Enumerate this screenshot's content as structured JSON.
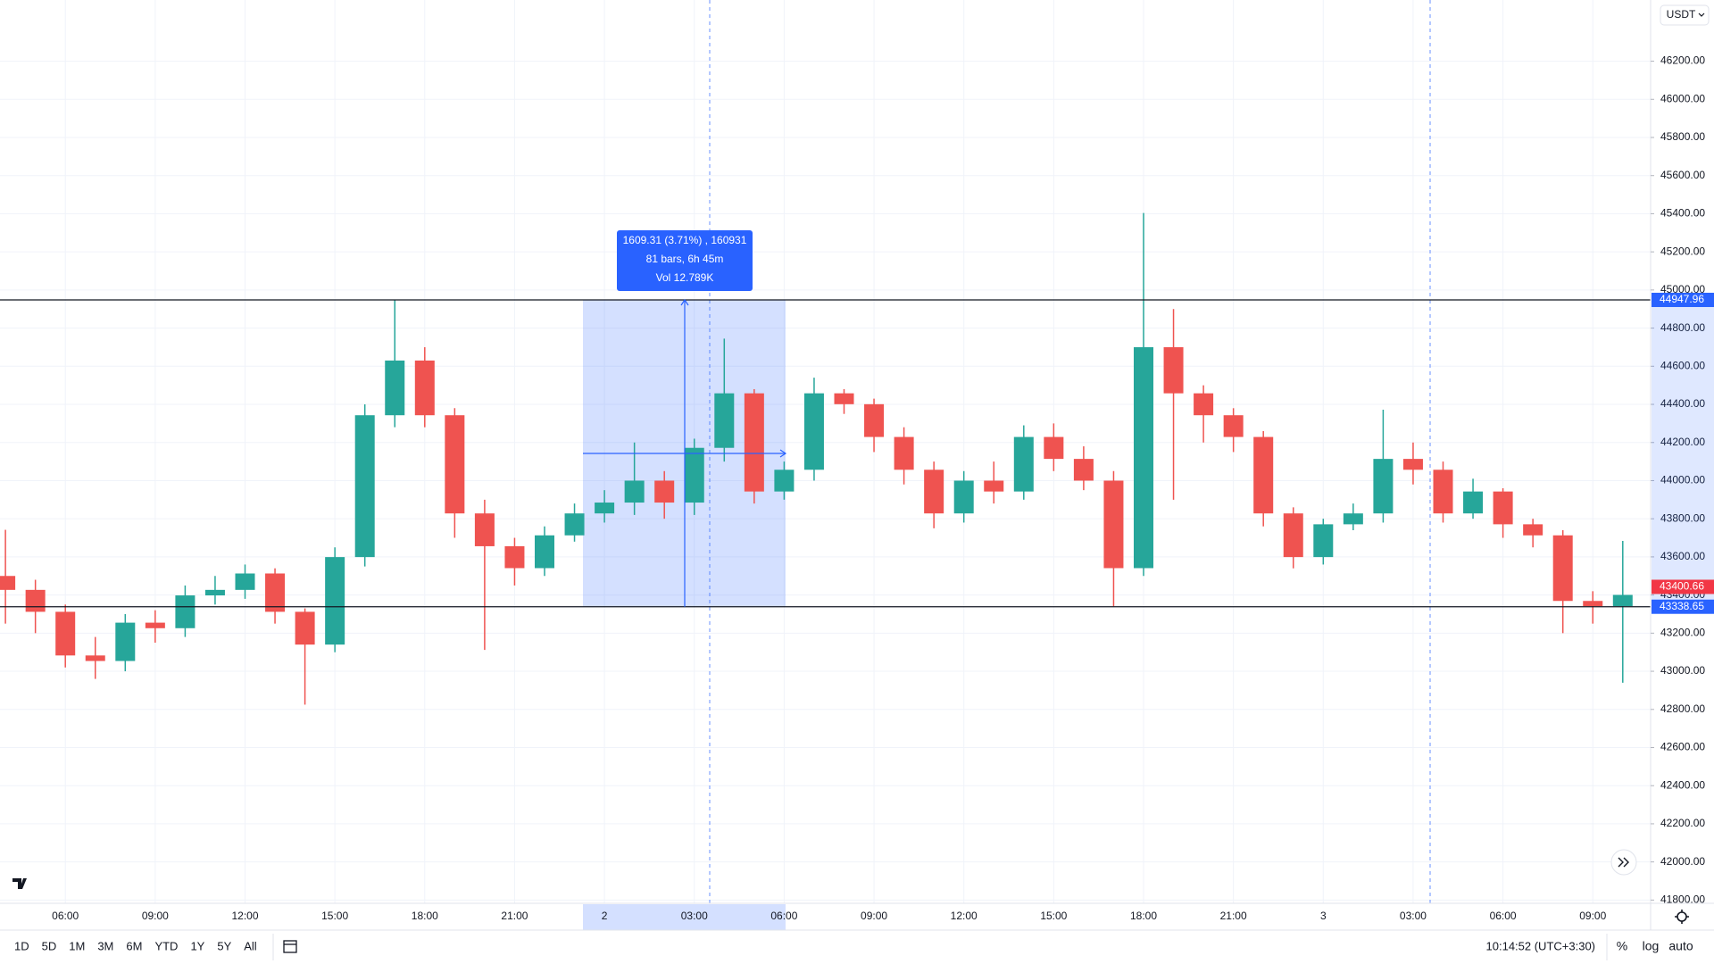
{
  "chart_data": {
    "type": "candlestick",
    "currency": "USDT",
    "categories": [
      null,
      null,
      "06:00",
      null,
      null,
      "09:00",
      null,
      null,
      "12:00",
      null,
      null,
      "15:00",
      null,
      null,
      "18:00",
      null,
      null,
      "21:00",
      null,
      null,
      "2",
      null,
      null,
      "03:00",
      null,
      null,
      "06:00",
      null,
      null,
      "09:00",
      null,
      null,
      "12:00",
      null,
      null,
      "15:00",
      null,
      null,
      "18:00",
      null,
      null,
      "21:00",
      null,
      null,
      "3",
      null,
      null,
      "03:00",
      null,
      null,
      "06:00",
      null,
      null,
      "09:00",
      null
    ],
    "open": [
      43500,
      43427,
      43312,
      43083,
      43054,
      43255,
      43226,
      43398,
      43427,
      43513,
      43312,
      43140,
      43599,
      44343,
      44630,
      44343,
      43828,
      43656,
      43541,
      43713,
      43828,
      43885,
      44000,
      43885,
      44172,
      44458,
      43943,
      44057,
      44458,
      44401,
      44229,
      44057,
      43828,
      44000,
      43943,
      44229,
      44114,
      44000,
      43541,
      44700,
      44458,
      44343,
      44229,
      43828,
      43599,
      43771,
      43828,
      44114,
      44057,
      43828,
      43943,
      43771,
      43713,
      43369,
      43341
    ],
    "high": [
      43742,
      43480,
      43350,
      43180,
      43300,
      43320,
      43450,
      43500,
      43560,
      43540,
      43330,
      43650,
      44400,
      44947,
      44700,
      44380,
      43900,
      43700,
      43760,
      43880,
      43950,
      44200,
      44050,
      44220,
      44745,
      44480,
      44100,
      44540,
      44480,
      44430,
      44280,
      44100,
      44050,
      44100,
      44290,
      44300,
      44180,
      44050,
      45404,
      44900,
      44500,
      44380,
      44260,
      43860,
      43800,
      43880,
      44372,
      44200,
      44100,
      44010,
      43960,
      43800,
      43740,
      43420,
      43684
    ],
    "low": [
      43250,
      43200,
      43020,
      42960,
      43000,
      43150,
      43180,
      43350,
      43380,
      43250,
      42825,
      43100,
      43550,
      44280,
      44280,
      43700,
      43112,
      43450,
      43500,
      43680,
      43780,
      43820,
      43800,
      43820,
      44100,
      43880,
      43900,
      44000,
      44350,
      44150,
      43980,
      43750,
      43780,
      43880,
      43900,
      44050,
      43950,
      43341,
      43500,
      43900,
      44200,
      44150,
      43760,
      43540,
      43560,
      43740,
      43780,
      43980,
      43780,
      43800,
      43700,
      43650,
      43200,
      43250,
      42940
    ],
    "close": [
      43427,
      43312,
      43083,
      43054,
      43255,
      43226,
      43398,
      43427,
      43513,
      43312,
      43140,
      43599,
      44343,
      44630,
      44343,
      43828,
      43656,
      43541,
      43713,
      43828,
      43885,
      44000,
      43885,
      44172,
      44458,
      43943,
      44057,
      44458,
      44401,
      44229,
      44057,
      43828,
      44000,
      43943,
      44229,
      44114,
      44000,
      43541,
      44700,
      44458,
      44343,
      44229,
      43828,
      43599,
      43771,
      43828,
      44114,
      44057,
      43828,
      43943,
      43771,
      43713,
      43369,
      43341,
      43400.66
    ],
    "up_color": "#26a69a",
    "down_color": "#ef5350",
    "ylim": [
      41783,
      46521
    ],
    "yticks": [
      {
        "value": 41800,
        "label": "41800.00"
      },
      {
        "value": 42000,
        "label": "42000.00"
      },
      {
        "value": 42200,
        "label": "42200.00"
      },
      {
        "value": 42400,
        "label": "42400.00"
      },
      {
        "value": 42600,
        "label": "42600.00"
      },
      {
        "value": 42800,
        "label": "42800.00"
      },
      {
        "value": 43000,
        "label": "43000.00"
      },
      {
        "value": 43200,
        "label": "43200.00"
      },
      {
        "value": 43400,
        "label": "43400.00"
      },
      {
        "value": 43600,
        "label": "43600.00"
      },
      {
        "value": 43800,
        "label": "43800.00"
      },
      {
        "value": 44000,
        "label": "44000.00"
      },
      {
        "value": 44200,
        "label": "44200.00"
      },
      {
        "value": 44400,
        "label": "44400.00"
      },
      {
        "value": 44600,
        "label": "44600.00"
      },
      {
        "value": 44800,
        "label": "44800.00"
      },
      {
        "value": 45000,
        "label": "45000.00"
      },
      {
        "value": 45200,
        "label": "45200.00"
      },
      {
        "value": 45400,
        "label": "45400.00"
      },
      {
        "value": 45600,
        "label": "45600.00"
      },
      {
        "value": 45800,
        "label": "45800.00"
      },
      {
        "value": 46000,
        "label": "46000.00"
      },
      {
        "value": 46200,
        "label": "46200.00"
      }
    ],
    "grid": true,
    "hlines": [
      44947.96,
      43338.65
    ],
    "hline_color": "#2962ff",
    "measure": [
      "1609.31 (3.71%) , 160931",
      "81 bars, 6h 45m",
      "Vol 12.789K"
    ]
  },
  "toolbar": {
    "ranges": [
      "1D",
      "5D",
      "1M",
      "3M",
      "6M",
      "YTD",
      "1Y",
      "5Y",
      "All"
    ],
    "clock": "10:14:52 (UTC+3:30)",
    "options": [
      "%",
      "log",
      "auto"
    ]
  }
}
